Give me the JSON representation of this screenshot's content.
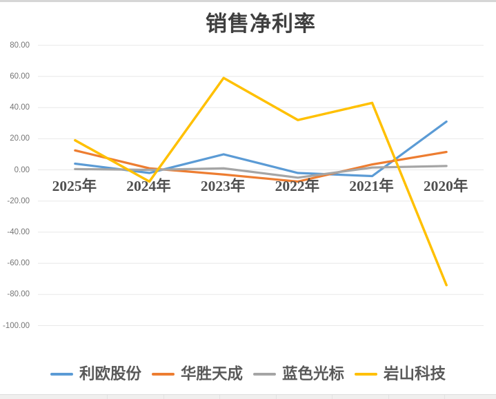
{
  "chart_data": {
    "type": "line",
    "title": "销售净利率",
    "categories": [
      "2025年",
      "2024年",
      "2023年",
      "2022年",
      "2021年",
      "2020年"
    ],
    "series": [
      {
        "name": "利欧股份",
        "color": "#5B9BD5",
        "values": [
          4,
          -2,
          10,
          -2,
          -4,
          31
        ]
      },
      {
        "name": "华胜天成",
        "color": "#ED7D31",
        "values": [
          12.5,
          1,
          -3,
          -7.5,
          3.5,
          11.5
        ]
      },
      {
        "name": "蓝色光标",
        "color": "#A5A5A5",
        "values": [
          0.5,
          0,
          1,
          -5,
          1.5,
          2.5
        ]
      },
      {
        "name": "岩山科技",
        "color": "#FFC000",
        "values": [
          19,
          -7.5,
          59,
          32,
          43,
          -74
        ]
      }
    ],
    "y_axis": {
      "min": -100,
      "max": 80,
      "step": 20,
      "tick_labels": [
        "80.00",
        "60.00",
        "40.00",
        "20.00",
        "0.00",
        "-20.00",
        "-40.00",
        "-60.00",
        "-80.00",
        "-100.00"
      ]
    },
    "grid": true,
    "legend_position": "bottom",
    "colors": {
      "gridline": "#e8e8e8",
      "title_text": "#3f3f3f",
      "axis_text": "#757575",
      "category_text": "#4f4f4f",
      "legend_text": "#595959"
    }
  }
}
